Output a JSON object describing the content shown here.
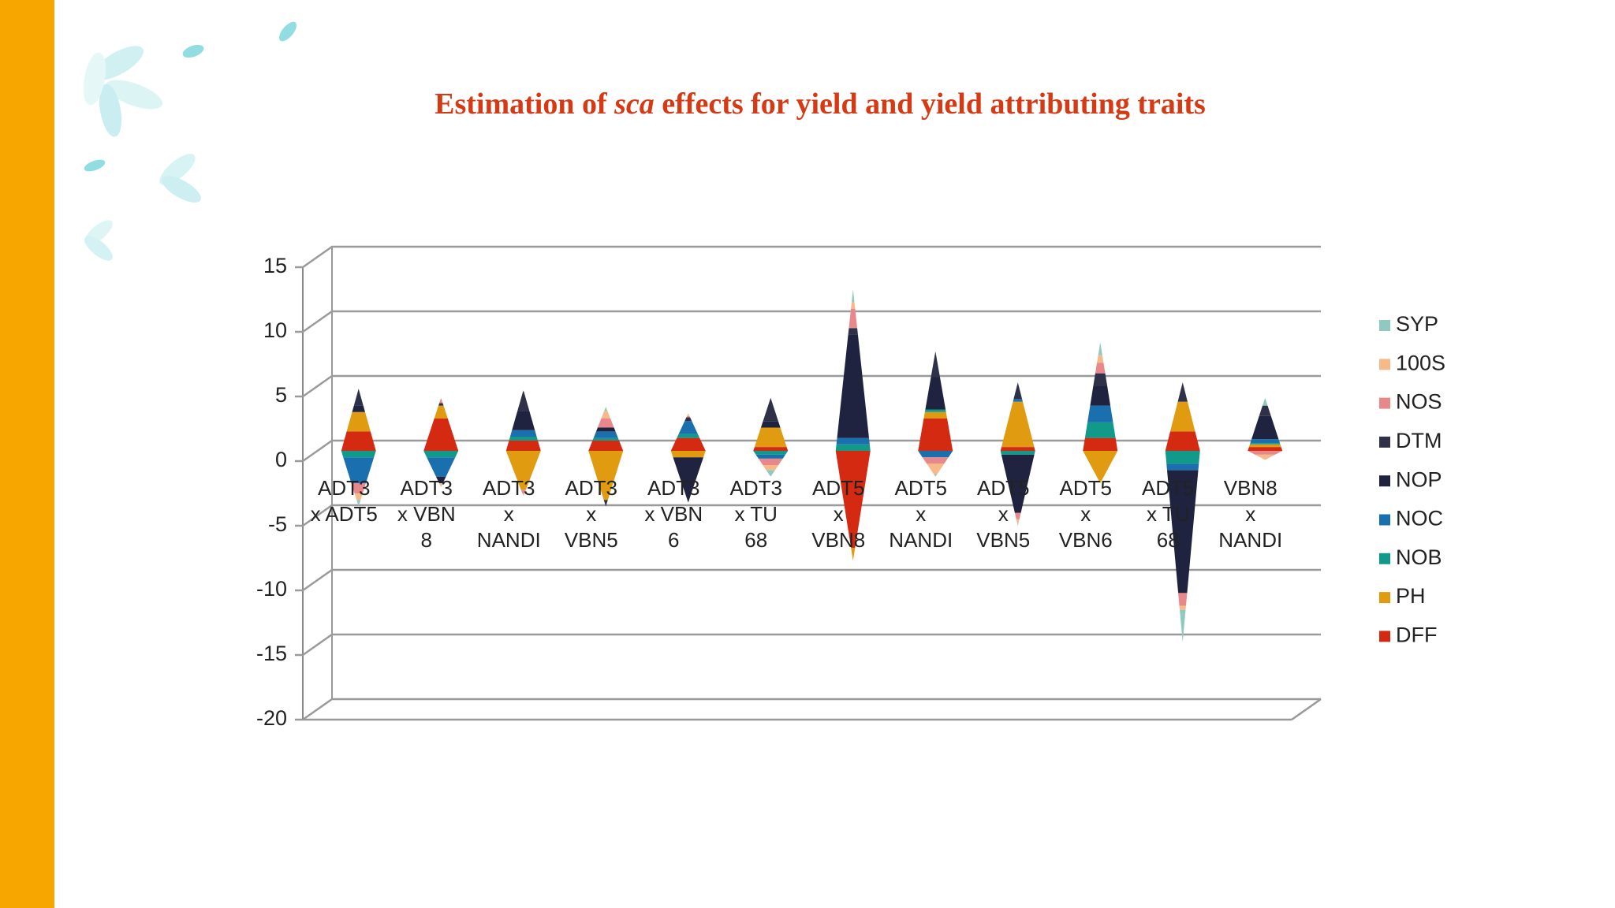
{
  "chart_data": {
    "type": "stacked-3d-cone",
    "title": [
      "Estimation of ",
      "sca",
      " effects for yield and yield attributing traits"
    ],
    "categories": [
      "ADT3 x ADT5",
      "ADT3 x VBN 8",
      "ADT3 x NANDI",
      "ADT3 x VBN5",
      "ADT3 x VBN 6",
      "ADT3 x TU 68",
      "ADT5 x VBN8",
      "ADT5 x NANDI",
      "ADT5 x VBN5",
      "ADT5 x VBN6",
      "ADT5 x TU 68",
      "VBN8 x NANDI"
    ],
    "series": [
      {
        "name": "DFF",
        "color": "#d42a12",
        "values": [
          1.5,
          2.5,
          0.8,
          0.8,
          1,
          0.3,
          -7.5,
          2.5,
          0.3,
          1,
          1.5,
          0.3
        ]
      },
      {
        "name": "PH",
        "color": "#e09b10",
        "values": [
          1.5,
          1,
          -3,
          -3.8,
          -0.5,
          1.5,
          -1,
          0.5,
          3.5,
          -2.5,
          2.3,
          0.2
        ]
      },
      {
        "name": "NOB",
        "color": "#119a8a",
        "values": [
          -0.5,
          -0.5,
          0.3,
          0.2,
          0.3,
          -0.3,
          0.5,
          0.2,
          -0.3,
          1.2,
          -1,
          0.1
        ]
      },
      {
        "name": "NOC",
        "color": "#1a6faf",
        "values": [
          -2,
          -1.5,
          0.5,
          0.5,
          1,
          -0.3,
          0.5,
          -0.5,
          0.2,
          1.3,
          -0.5,
          0.3
        ]
      },
      {
        "name": "NOP",
        "color": "#1f2340",
        "values": [
          0.5,
          -0.5,
          1.5,
          0.3,
          -3.5,
          0.5,
          8,
          2.5,
          -4.5,
          1.5,
          -9.5,
          1.8
        ]
      },
      {
        "name": "DTM",
        "color": "#2e3148",
        "values": [
          1.3,
          0.2,
          1.5,
          -0.5,
          0.3,
          1.8,
          0.5,
          2,
          1.3,
          1,
          1.5,
          0.8
        ]
      },
      {
        "name": "NOS",
        "color": "#e8888a",
        "values": [
          -0.8,
          0.3,
          -0.3,
          0.7,
          0.1,
          -0.5,
          1.5,
          -0.5,
          -0.5,
          0.8,
          -1,
          -0.3
        ]
      },
      {
        "name": "100S",
        "color": "#f5b98a",
        "values": [
          -0.5,
          -0.3,
          -0.2,
          0.6,
          0.1,
          -0.4,
          0.5,
          -0.8,
          -0.3,
          0.6,
          -0.3,
          -0.4
        ]
      },
      {
        "name": "SYP",
        "color": "#8fc9bf",
        "values": [
          -0.5,
          0.1,
          0.1,
          0.3,
          0.1,
          -0.5,
          1,
          -0.2,
          -0.2,
          1,
          -2.5,
          0.6
        ]
      }
    ],
    "ylim": [
      -20,
      15
    ],
    "yticks": [
      -20,
      -15,
      -10,
      -5,
      0,
      5,
      10,
      15
    ],
    "grid": true,
    "legend": "right"
  }
}
